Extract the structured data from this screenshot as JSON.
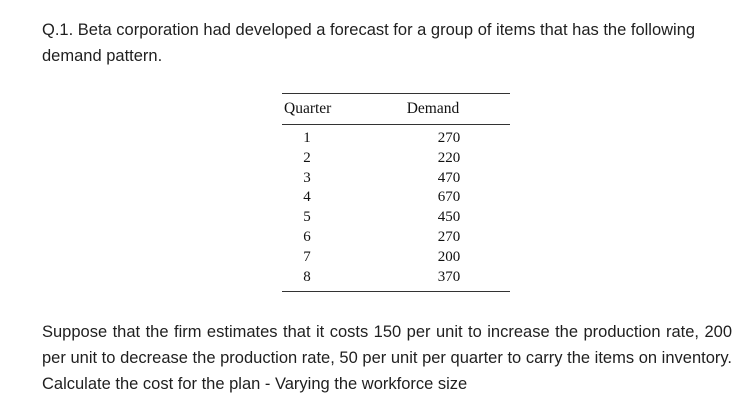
{
  "question": {
    "intro": "Q.1. Beta corporation had developed a forecast for a group of items that has the following demand pattern.",
    "body": "Suppose that the firm estimates that it costs 150 per unit to increase the production rate, 200 per unit to decrease the production rate, 50 per unit per quarter to carry the items on inventory. Calculate the cost for the plan - Varying the workforce size"
  },
  "table": {
    "headers": [
      "Quarter",
      "Demand"
    ],
    "rows": [
      {
        "quarter": "1",
        "demand": "270"
      },
      {
        "quarter": "2",
        "demand": "220"
      },
      {
        "quarter": "3",
        "demand": "470"
      },
      {
        "quarter": "4",
        "demand": "670"
      },
      {
        "quarter": "5",
        "demand": "450"
      },
      {
        "quarter": "6",
        "demand": "270"
      },
      {
        "quarter": "7",
        "demand": "200"
      },
      {
        "quarter": "8",
        "demand": "370"
      }
    ]
  }
}
